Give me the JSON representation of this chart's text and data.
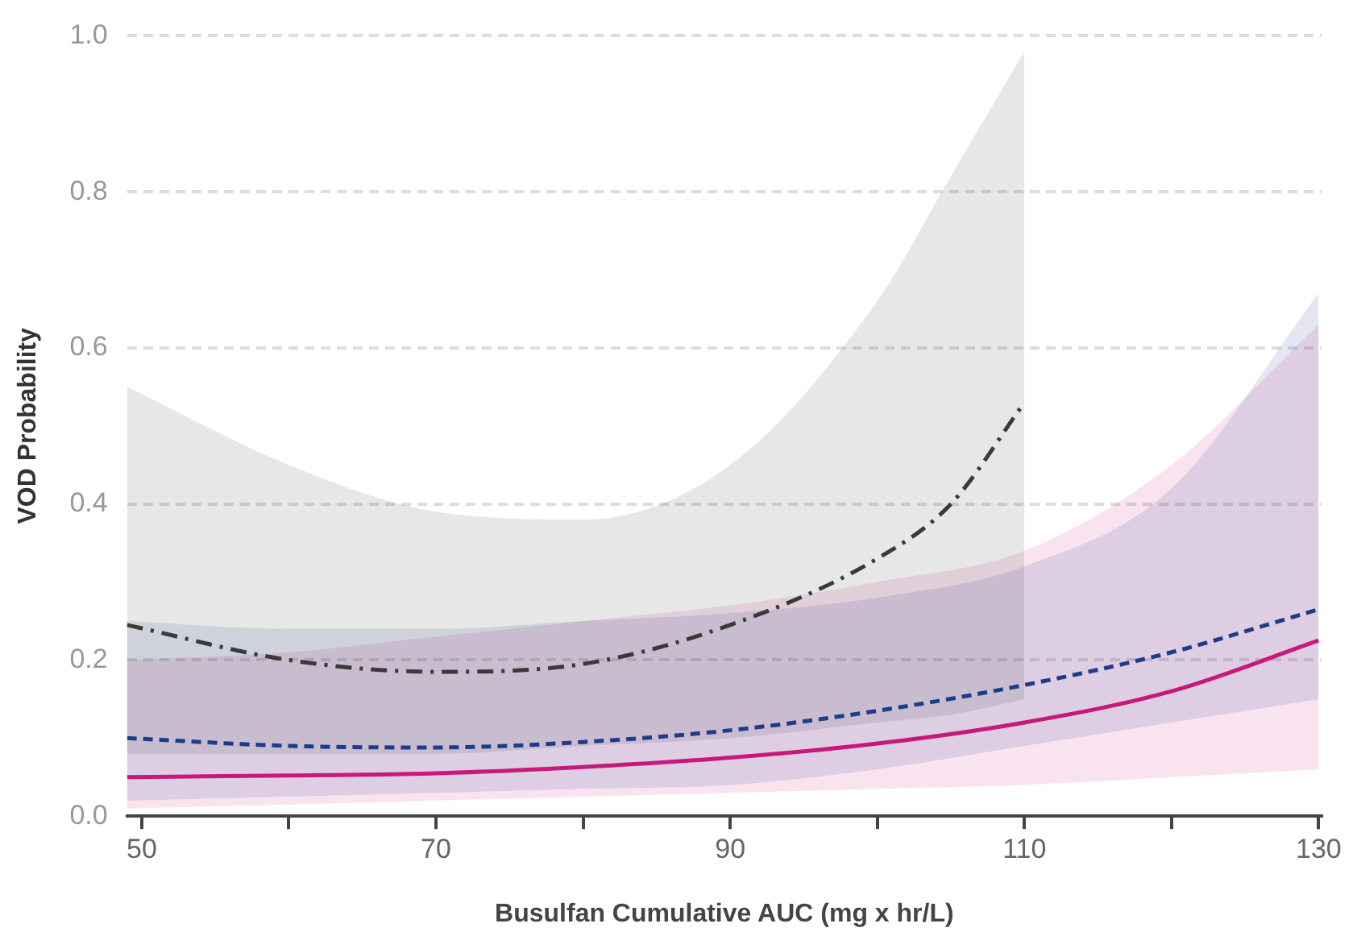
{
  "chart_data": {
    "type": "line",
    "xlabel": "Busulfan Cumulative AUC (mg x hr/L)",
    "ylabel": "VOD Probability",
    "xlim": [
      49,
      130.2
    ],
    "ylim": [
      0,
      1
    ],
    "xticks": [
      50,
      {
        "value": 60,
        "label": null
      },
      70,
      {
        "value": 80,
        "label": null
      },
      90,
      {
        "value": 100,
        "label": null
      },
      110,
      {
        "value": 120,
        "label": null
      },
      130
    ],
    "yticks": [
      {
        "value": 0,
        "label": "0.0"
      },
      {
        "value": 0.2,
        "label": "0.2"
      },
      {
        "value": 0.4,
        "label": "0.4"
      },
      {
        "value": 0.6,
        "label": "0.6"
      },
      {
        "value": 0.8,
        "label": "0.8"
      },
      {
        "value": 1,
        "label": "1.0"
      }
    ],
    "grid": "y",
    "legend": false,
    "marker": "none",
    "series": [
      {
        "color": "#3a3a3a",
        "line_style": "dashdot",
        "x": [
          49,
          60,
          70,
          80,
          90,
          100,
          105,
          110
        ],
        "values": [
          0.245,
          0.2,
          0.185,
          0.195,
          0.245,
          0.33,
          0.4,
          0.53
        ],
        "upper": [
          0.55,
          0.45,
          0.39,
          0.38,
          0.45,
          0.66,
          0.82,
          0.98
        ],
        "lower": [
          0.08,
          0.08,
          0.08,
          0.09,
          0.1,
          0.12,
          0.13,
          0.15
        ]
      },
      {
        "color": "#1f3c88",
        "line_style": "dashed",
        "x": [
          49,
          60,
          70,
          80,
          90,
          100,
          110,
          120,
          130
        ],
        "values": [
          0.1,
          0.09,
          0.088,
          0.095,
          0.11,
          0.135,
          0.168,
          0.21,
          0.265
        ],
        "upper": [
          0.25,
          0.24,
          0.24,
          0.25,
          0.26,
          0.28,
          0.32,
          0.42,
          0.67
        ],
        "lower": [
          0.02,
          0.025,
          0.03,
          0.035,
          0.04,
          0.06,
          0.09,
          0.12,
          0.15
        ]
      },
      {
        "color": "#c8187e",
        "line_style": "solid",
        "x": [
          49,
          60,
          70,
          80,
          90,
          100,
          110,
          120,
          130
        ],
        "values": [
          0.05,
          0.052,
          0.055,
          0.063,
          0.075,
          0.093,
          0.12,
          0.16,
          0.225
        ],
        "upper": [
          0.2,
          0.21,
          0.23,
          0.25,
          0.27,
          0.3,
          0.34,
          0.45,
          0.63
        ],
        "lower": [
          0.01,
          0.015,
          0.02,
          0.025,
          0.03,
          0.035,
          0.04,
          0.05,
          0.06
        ]
      }
    ]
  }
}
